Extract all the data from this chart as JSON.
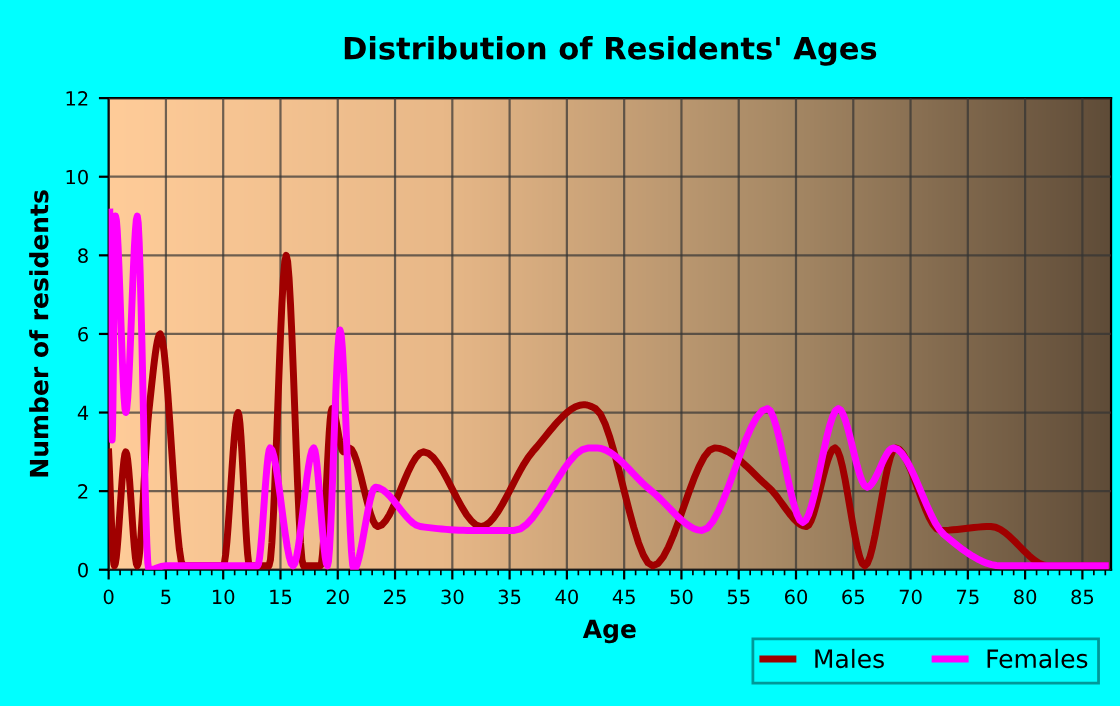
{
  "chart_data": {
    "type": "line",
    "title": "Distribution of Residents' Ages",
    "xlabel": "Age",
    "ylabel": "Number of residents",
    "xlim": [
      0,
      87.5
    ],
    "xticks": [
      0,
      5,
      10,
      15,
      20,
      25,
      30,
      35,
      40,
      45,
      50,
      55,
      60,
      65,
      70,
      75,
      80,
      85
    ],
    "ylim": [
      0,
      12
    ],
    "yticks": [
      0,
      2,
      4,
      6,
      8,
      10,
      12
    ],
    "grid": true,
    "legend": "bottom right",
    "marker": "none",
    "line_style": "solid",
    "series": [
      {
        "name": "Males",
        "color": "#a00000",
        "x": [
          0,
          0.5,
          1.5,
          2.5,
          3.5,
          4.5,
          6.5,
          8,
          10,
          11.3,
          12.3,
          14,
          15.5,
          17,
          18.5,
          19.5,
          20.5,
          21,
          23.5,
          27.5,
          32.5,
          37,
          41.5,
          42.5,
          47.5,
          52.9,
          57.6,
          60.9,
          63.4,
          66,
          68.7,
          72.6,
          77,
          82,
          87
        ],
        "values": [
          3,
          0.1,
          3,
          0.1,
          4,
          6,
          0.1,
          0.1,
          0.1,
          4,
          0.1,
          0.1,
          8,
          0.1,
          0.1,
          4.1,
          3,
          3.1,
          1.1,
          3,
          1.1,
          3,
          4.2,
          4.1,
          0.1,
          3.1,
          2.1,
          1.1,
          3.1,
          0.1,
          3.1,
          1,
          1.1,
          0.1,
          0.1
        ]
      },
      {
        "name": "Females",
        "color": "#ff00ff",
        "x": [
          0.1,
          0.3,
          0.6,
          1.5,
          2.5,
          3.5,
          5,
          9,
          13,
          14.1,
          16.1,
          17.9,
          19.1,
          20.2,
          21.4,
          23.3,
          27.2,
          31.7,
          35.4,
          41.9,
          42.6,
          47.4,
          51.8,
          57.5,
          60.6,
          63.7,
          66.2,
          68.5,
          72.9,
          77.9,
          87
        ],
        "values": [
          9.1,
          3.3,
          9,
          4,
          9,
          0,
          0.1,
          0.1,
          0.1,
          3.1,
          0.1,
          3.1,
          0.1,
          6.1,
          0,
          2.1,
          1.1,
          1,
          1,
          3.1,
          3.1,
          2,
          1,
          4.1,
          1.2,
          4.1,
          2.1,
          3.1,
          0.9,
          0.1,
          0.1
        ]
      }
    ]
  }
}
